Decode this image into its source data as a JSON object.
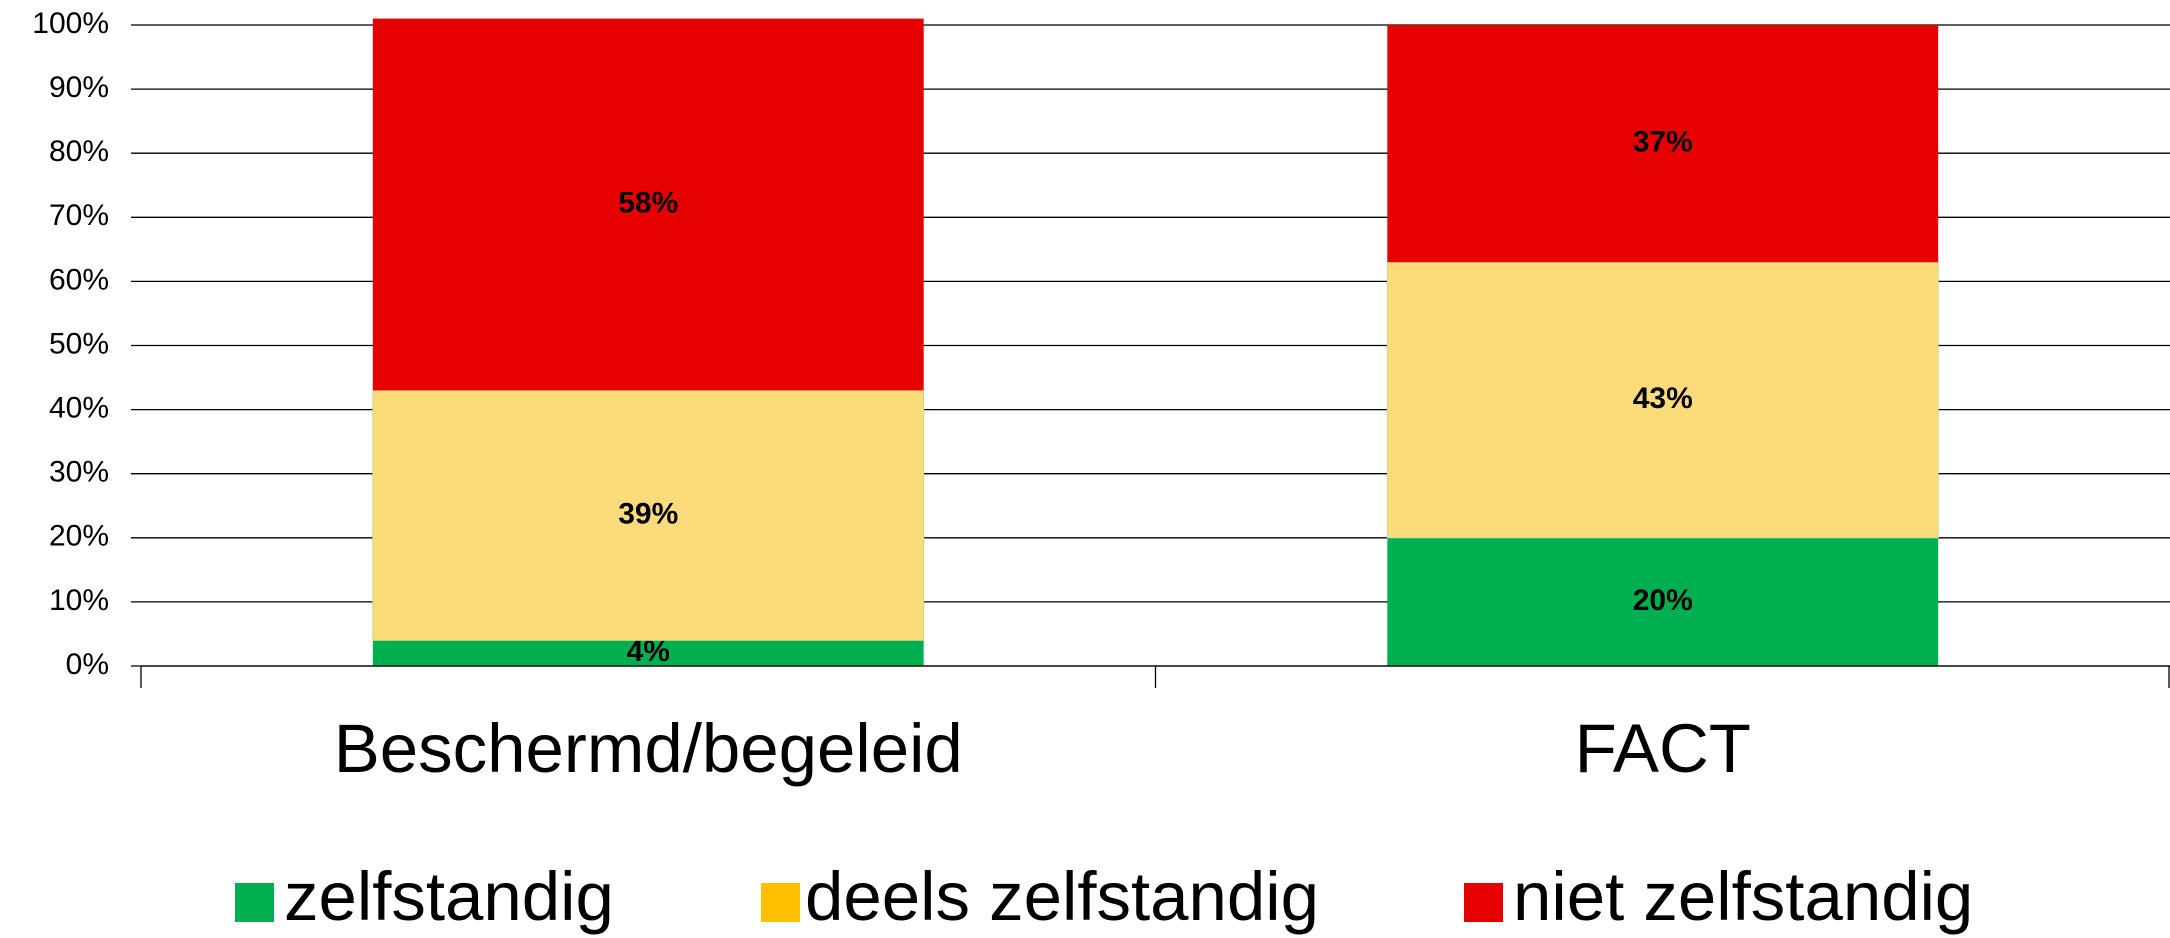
{
  "chart_data": {
    "type": "stacked_bar",
    "categories": [
      "Beschermd/begeleid",
      "FACT"
    ],
    "series": [
      {
        "name": "zelfstandig",
        "color": "#00b050",
        "legend_color": "#00b050",
        "values": [
          4,
          20
        ],
        "value_labels": [
          "4%",
          "20%"
        ]
      },
      {
        "name": "deels zelfstandig",
        "color": "#fcdb7b",
        "legend_color": "#ffc000",
        "values": [
          39,
          43
        ],
        "value_labels": [
          "39%",
          "43%"
        ]
      },
      {
        "name": "niet zelfstandig",
        "color": "#e60000",
        "legend_color": "#e60000",
        "values": [
          58,
          37
        ],
        "value_labels": [
          "58%",
          "37%"
        ]
      }
    ],
    "ylim": [
      0,
      100
    ],
    "yticks": [
      {
        "value": 0,
        "label": "0%"
      },
      {
        "value": 10,
        "label": "10%"
      },
      {
        "value": 20,
        "label": "20%"
      },
      {
        "value": 30,
        "label": "30%"
      },
      {
        "value": 40,
        "label": "40%"
      },
      {
        "value": 50,
        "label": "50%"
      },
      {
        "value": 60,
        "label": "60%"
      },
      {
        "value": 70,
        "label": "70%"
      },
      {
        "value": 80,
        "label": "80%"
      },
      {
        "value": 90,
        "label": "90%"
      },
      {
        "value": 100,
        "label": "100%"
      }
    ],
    "grid": true,
    "legend": "bottom"
  }
}
